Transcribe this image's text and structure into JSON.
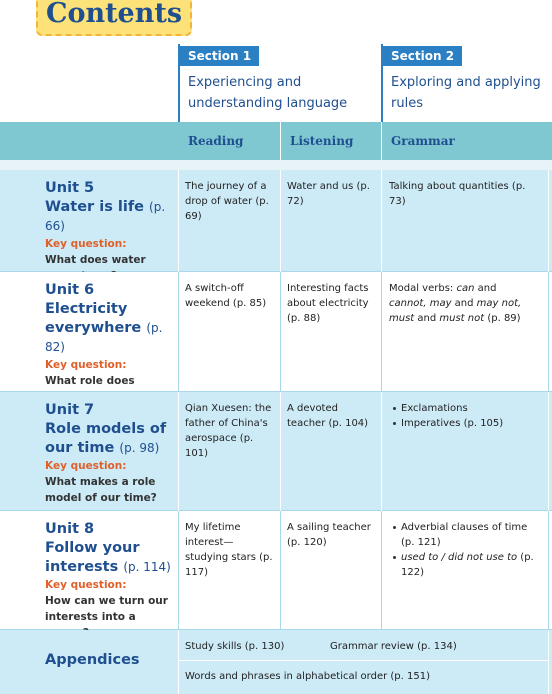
{
  "title": "Contents",
  "sections": [
    {
      "label": "Section 1",
      "title": "Experiencing and understanding language"
    },
    {
      "label": "Section 2",
      "title": "Exploring and applying rules"
    }
  ],
  "columns": [
    "Reading",
    "Listening",
    "Grammar"
  ],
  "units": [
    {
      "unit": "Unit 5",
      "name": "Water is life",
      "page": "(p. 66)",
      "key_label": "Key question:",
      "key_question": "What does water mean to us?",
      "reading": "The journey of a drop of water (p. 69)",
      "listening": "Water and us (p. 72)",
      "bullets": false,
      "grammar": [
        [
          {
            "text": "Talking about quantities (p. 73)"
          }
        ]
      ]
    },
    {
      "unit": "Unit 6",
      "name": "Electricity everywhere",
      "page": "(p. 82)",
      "key_label": "Key question:",
      "key_question": "What role does electricity play in our daily lives?",
      "reading": "A switch-off weekend (p. 85)",
      "listening": "Interesting facts about electricity (p. 88)",
      "bullets": false,
      "grammar": [
        [
          {
            "text": "Modal verbs: "
          },
          {
            "text": "can",
            "italic": true
          },
          {
            "text": " and "
          },
          {
            "text": "cannot, may",
            "italic": true
          },
          {
            "text": " and "
          },
          {
            "text": "may not, must",
            "italic": true
          },
          {
            "text": " and "
          },
          {
            "text": "must not",
            "italic": true
          },
          {
            "text": " (p. 89)"
          }
        ]
      ]
    },
    {
      "unit": "Unit 7",
      "name": "Role models of our time",
      "page": "(p. 98)",
      "key_label": "Key question:",
      "key_question": "What makes a role model of our time?",
      "reading": "Qian Xuesen: the father of China's aerospace (p. 101)",
      "listening": "A devoted teacher (p. 104)",
      "bullets": true,
      "grammar": [
        [
          {
            "text": "Exclamations"
          }
        ],
        [
          {
            "text": "Imperatives (p. 105)"
          }
        ]
      ]
    },
    {
      "unit": "Unit 8",
      "name": "Follow your interests",
      "page": "(p. 114)",
      "key_label": "Key question:",
      "key_question": "How can we turn our interests into a career?",
      "reading": "My lifetime interest—studying stars (p. 117)",
      "listening": "A sailing teacher (p. 120)",
      "bullets": true,
      "grammar": [
        [
          {
            "text": "Adverbial clauses of time (p. 121)"
          }
        ],
        [
          {
            "text": "used to / did not use to",
            "italic": true
          },
          {
            "text": " (p. 122)"
          }
        ]
      ]
    }
  ],
  "appendices": {
    "label": "Appendices",
    "items": [
      "Study skills (p. 130)",
      "Grammar review (p. 134)",
      "Words and phrases in alphabetical order (p. 151)"
    ]
  }
}
